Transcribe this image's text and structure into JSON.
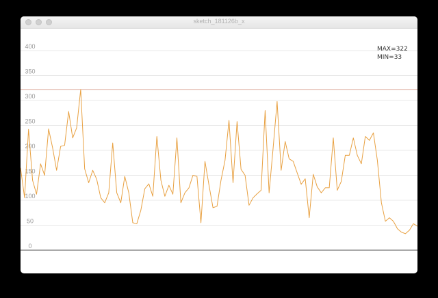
{
  "window": {
    "title": "sketch_181126b_x"
  },
  "stats": {
    "max_label": "MAX=322",
    "min_label": "MIN=33"
  },
  "colors": {
    "line": "#e8a040",
    "max_line": "#d9a090",
    "baseline": "#555555",
    "grid": "#e8e8e8",
    "tick_text": "#999999"
  },
  "chart_data": {
    "type": "line",
    "title": "",
    "xlabel": "",
    "ylabel": "",
    "ylim": [
      0,
      400
    ],
    "yticks": [
      0,
      50,
      100,
      150,
      200,
      250,
      300,
      350,
      400
    ],
    "ytick_labels": [
      "0",
      "50",
      "100",
      "150",
      "200",
      "250",
      "300",
      "350",
      "400"
    ],
    "grid": true,
    "reference_lines": [
      {
        "label": "MAX",
        "value": 322
      }
    ],
    "series": [
      {
        "values": [
          165,
          105,
          242,
          140,
          112,
          173,
          150,
          243,
          205,
          160,
          208,
          210,
          278,
          225,
          245,
          322,
          163,
          135,
          160,
          142,
          105,
          95,
          115,
          215,
          115,
          95,
          148,
          115,
          55,
          53,
          80,
          123,
          133,
          108,
          228,
          140,
          108,
          130,
          112,
          225,
          95,
          115,
          125,
          150,
          148,
          55,
          178,
          130,
          85,
          88,
          140,
          180,
          260,
          135,
          258,
          162,
          150,
          90,
          105,
          113,
          120,
          280,
          115,
          205,
          298,
          160,
          218,
          183,
          178,
          155,
          132,
          143,
          65,
          152,
          127,
          115,
          125,
          125,
          225,
          120,
          138,
          190,
          190,
          225,
          190,
          173,
          228,
          220,
          235,
          180,
          95,
          58,
          65,
          58,
          43,
          36,
          33,
          40,
          53,
          48
        ]
      }
    ]
  }
}
